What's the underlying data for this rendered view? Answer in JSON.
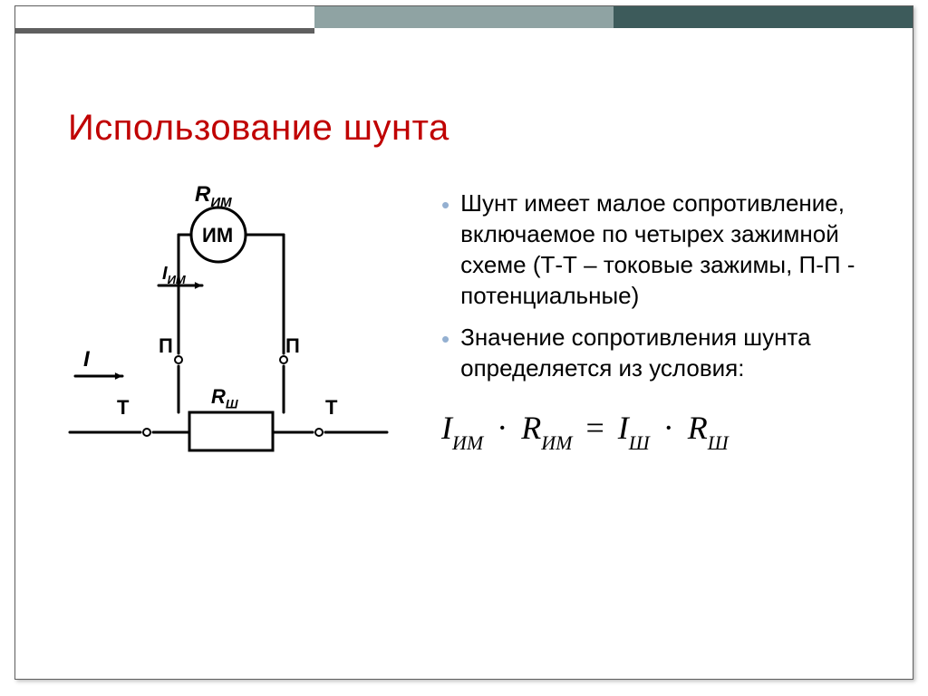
{
  "decor": {
    "top_bar_colors": [
      "#ffffff",
      "#8fa3a3",
      "#3d5b5b"
    ],
    "mid_bar_colors": [
      "#5f5f5f",
      "#ffffff",
      "#ffffff"
    ]
  },
  "title": {
    "text": "Использование шунта",
    "color": "#c00000",
    "fontsize": 40
  },
  "bullets": {
    "marker_color": "#94b0d1",
    "items": [
      "Шунт имеет малое сопротивление, включаемое по четырех зажимной схеме (Т-Т – токовые зажимы, П-П - потенциальные)",
      "Значение сопротивления шунта определяется из условия:"
    ]
  },
  "formula": {
    "I": "I",
    "R": "R",
    "sub_im": "ИМ",
    "sub_sh": "Ш",
    "dot": "·",
    "eq": "="
  },
  "diagram": {
    "stroke": "#000000",
    "stroke_width": 3,
    "meter_label": "ИМ",
    "R_im": "R",
    "R_im_sub": "ИМ",
    "I_im": "I",
    "I_im_sub": "ИМ",
    "I": "I",
    "P_label": "П",
    "T_label": "Т",
    "R_sh": "R",
    "R_sh_sub": "Ш",
    "node_radius": 4
  }
}
